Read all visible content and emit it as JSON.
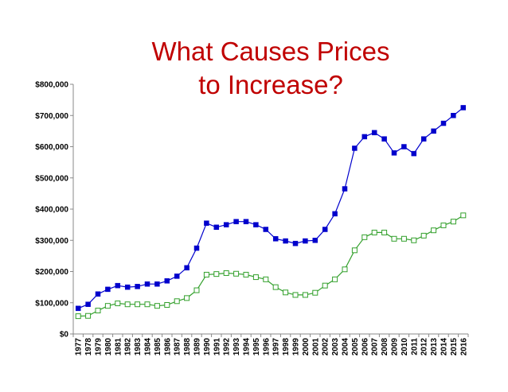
{
  "slide": {
    "title_line1": "What Causes Prices",
    "title_line2": "to Increase?"
  },
  "chart_data": {
    "type": "line",
    "title": "What Causes Prices to Increase?",
    "xlabel": "",
    "ylabel": "",
    "ylim": [
      0,
      800000
    ],
    "yticks": [
      "$0",
      "$100,000",
      "$200,000",
      "$300,000",
      "$400,000",
      "$500,000",
      "$600,000",
      "$700,000",
      "$800,000"
    ],
    "grid": false,
    "legend": "none",
    "x": [
      "1977",
      "1978",
      "1979",
      "1980",
      "1981",
      "1982",
      "1983",
      "1984",
      "1985",
      "1986",
      "1987",
      "1988",
      "1989",
      "1990",
      "1991",
      "1992",
      "1993",
      "1994",
      "1995",
      "1996",
      "1997",
      "1998",
      "1999",
      "2000",
      "2001",
      "2002",
      "2003",
      "2004",
      "2005",
      "2006",
      "2007",
      "2008",
      "2009",
      "2010",
      "2011",
      "2012",
      "2013",
      "2014",
      "2015",
      "2016"
    ],
    "series": [
      {
        "color": "#0000cc",
        "marker": "filled-square",
        "values": [
          82000,
          95000,
          128000,
          143000,
          155000,
          150000,
          152000,
          160000,
          160000,
          170000,
          185000,
          212000,
          275000,
          355000,
          342000,
          350000,
          360000,
          360000,
          350000,
          335000,
          305000,
          298000,
          290000,
          298000,
          300000,
          335000,
          385000,
          465000,
          595000,
          632000,
          645000,
          625000,
          580000,
          600000,
          578000,
          625000,
          650000,
          675000,
          700000,
          725000
        ]
      },
      {
        "color": "#33a02c",
        "marker": "open-square",
        "values": [
          57000,
          58000,
          75000,
          90000,
          98000,
          95000,
          95000,
          95000,
          90000,
          93000,
          105000,
          115000,
          140000,
          190000,
          192000,
          195000,
          193000,
          190000,
          182000,
          175000,
          150000,
          133000,
          125000,
          125000,
          132000,
          155000,
          175000,
          207000,
          268000,
          310000,
          325000,
          325000,
          305000,
          305000,
          300000,
          315000,
          332000,
          348000,
          360000,
          380000
        ]
      }
    ]
  }
}
